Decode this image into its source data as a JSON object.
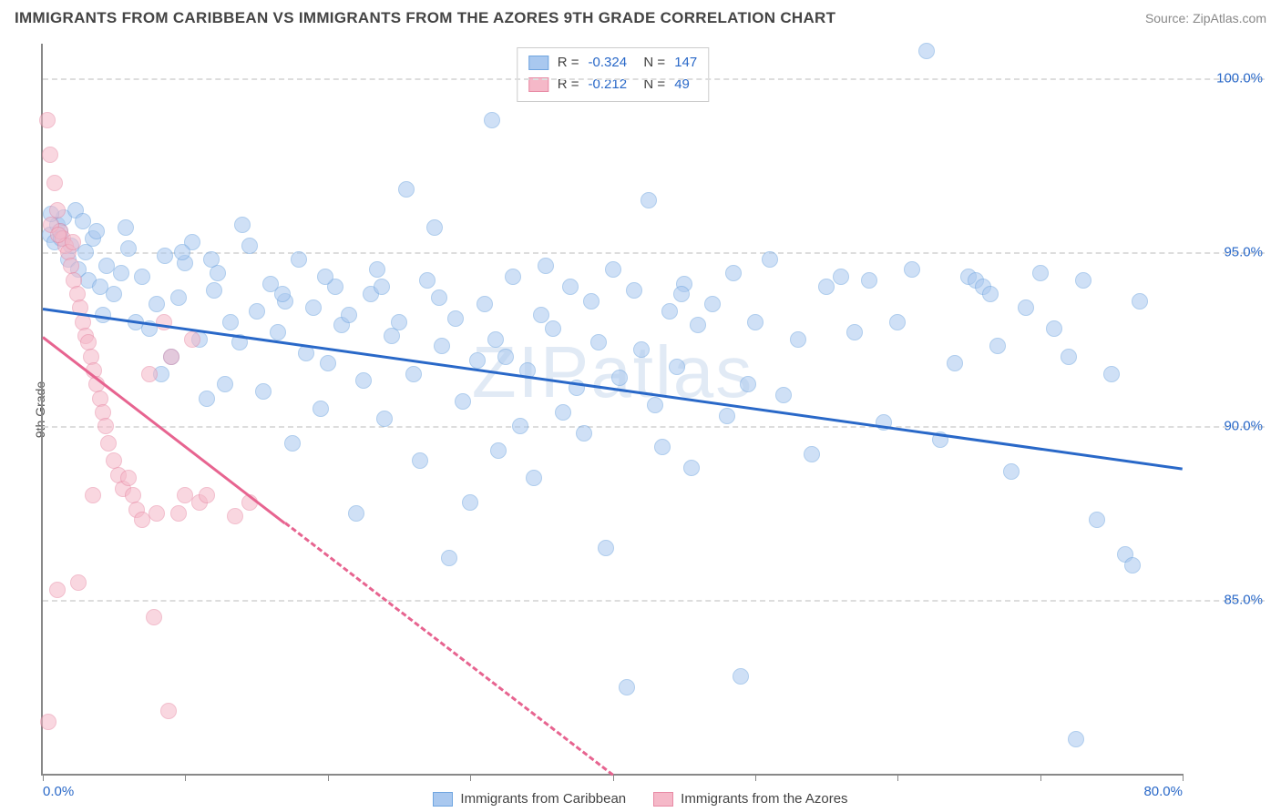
{
  "title": "IMMIGRANTS FROM CARIBBEAN VS IMMIGRANTS FROM THE AZORES 9TH GRADE CORRELATION CHART",
  "source": "Source: ZipAtlas.com",
  "watermark": "ZIPatlas",
  "ylabel": "9th Grade",
  "chart": {
    "type": "scatter",
    "background_color": "#ffffff",
    "grid_color": "#dddddd",
    "axis_color": "#888888",
    "text_color": "#555555",
    "value_color": "#2968c8",
    "xlim": [
      0,
      80
    ],
    "ylim": [
      80,
      101
    ],
    "xticks": [
      0,
      10,
      20,
      30,
      40,
      50,
      60,
      70,
      80
    ],
    "xtick_labels_shown": {
      "0": "0.0%",
      "80": "80.0%"
    },
    "yticks": [
      85,
      90,
      95,
      100
    ],
    "ytick_labels": [
      "85.0%",
      "90.0%",
      "95.0%",
      "100.0%"
    ],
    "marker_radius": 9,
    "marker_opacity": 0.55,
    "trend_line_width": 3
  },
  "series": [
    {
      "name": "Immigrants from Caribbean",
      "color_fill": "#a9c8ef",
      "color_stroke": "#6fa5e0",
      "trend_color": "#2968c8",
      "trend_dash": "solid",
      "R": "-0.324",
      "N": "147",
      "trend": {
        "x1": 0,
        "y1": 93.4,
        "x2": 80,
        "y2": 88.8
      },
      "points": [
        [
          0.5,
          95.5
        ],
        [
          0.8,
          95.3
        ],
        [
          1.0,
          95.8
        ],
        [
          1.2,
          95.6
        ],
        [
          1.5,
          96.0
        ],
        [
          1.8,
          94.8
        ],
        [
          2.0,
          95.2
        ],
        [
          2.3,
          96.2
        ],
        [
          2.5,
          94.5
        ],
        [
          3.0,
          95.0
        ],
        [
          3.2,
          94.2
        ],
        [
          3.5,
          95.4
        ],
        [
          4.0,
          94.0
        ],
        [
          4.2,
          93.2
        ],
        [
          4.5,
          94.6
        ],
        [
          5.0,
          93.8
        ],
        [
          5.5,
          94.4
        ],
        [
          6.0,
          95.1
        ],
        [
          6.5,
          93.0
        ],
        [
          7.0,
          94.3
        ],
        [
          7.5,
          92.8
        ],
        [
          8.0,
          93.5
        ],
        [
          8.3,
          91.5
        ],
        [
          8.6,
          94.9
        ],
        [
          9.0,
          92.0
        ],
        [
          9.5,
          93.7
        ],
        [
          10.0,
          94.7
        ],
        [
          10.5,
          95.3
        ],
        [
          11.0,
          92.5
        ],
        [
          11.5,
          90.8
        ],
        [
          12.0,
          93.9
        ],
        [
          12.3,
          94.4
        ],
        [
          12.8,
          91.2
        ],
        [
          13.2,
          93.0
        ],
        [
          13.8,
          92.4
        ],
        [
          14.5,
          95.2
        ],
        [
          15.0,
          93.3
        ],
        [
          15.5,
          91.0
        ],
        [
          16.0,
          94.1
        ],
        [
          16.5,
          92.7
        ],
        [
          17.0,
          93.6
        ],
        [
          17.5,
          89.5
        ],
        [
          18.0,
          94.8
        ],
        [
          18.5,
          92.1
        ],
        [
          19.0,
          93.4
        ],
        [
          19.5,
          90.5
        ],
        [
          20.0,
          91.8
        ],
        [
          20.5,
          94.0
        ],
        [
          21.0,
          92.9
        ],
        [
          21.5,
          93.2
        ],
        [
          22.0,
          87.5
        ],
        [
          22.5,
          91.3
        ],
        [
          23.0,
          93.8
        ],
        [
          23.5,
          94.5
        ],
        [
          24.0,
          90.2
        ],
        [
          24.5,
          92.6
        ],
        [
          25.0,
          93.0
        ],
        [
          25.5,
          96.8
        ],
        [
          26.0,
          91.5
        ],
        [
          26.5,
          89.0
        ],
        [
          27.0,
          94.2
        ],
        [
          27.5,
          95.7
        ],
        [
          28.0,
          92.3
        ],
        [
          28.5,
          86.2
        ],
        [
          29.0,
          93.1
        ],
        [
          29.5,
          90.7
        ],
        [
          30.0,
          87.8
        ],
        [
          30.5,
          91.9
        ],
        [
          31.0,
          93.5
        ],
        [
          31.5,
          98.8
        ],
        [
          32.0,
          89.3
        ],
        [
          32.5,
          92.0
        ],
        [
          33.0,
          94.3
        ],
        [
          33.5,
          90.0
        ],
        [
          34.0,
          91.6
        ],
        [
          34.5,
          88.5
        ],
        [
          35.0,
          93.2
        ],
        [
          35.8,
          92.8
        ],
        [
          36.5,
          90.4
        ],
        [
          37.0,
          94.0
        ],
        [
          37.5,
          91.1
        ],
        [
          38.0,
          89.8
        ],
        [
          38.5,
          93.6
        ],
        [
          39.0,
          92.4
        ],
        [
          39.5,
          86.5
        ],
        [
          40.0,
          94.5
        ],
        [
          40.5,
          91.4
        ],
        [
          41.0,
          82.5
        ],
        [
          41.5,
          93.9
        ],
        [
          42.0,
          92.2
        ],
        [
          42.5,
          96.5
        ],
        [
          43.0,
          90.6
        ],
        [
          43.5,
          89.4
        ],
        [
          44.0,
          93.3
        ],
        [
          44.5,
          91.7
        ],
        [
          45.0,
          94.1
        ],
        [
          45.5,
          88.8
        ],
        [
          46.0,
          92.9
        ],
        [
          47.0,
          93.5
        ],
        [
          48.0,
          90.3
        ],
        [
          48.5,
          94.4
        ],
        [
          49.0,
          82.8
        ],
        [
          49.5,
          91.2
        ],
        [
          50.0,
          93.0
        ],
        [
          51.0,
          94.8
        ],
        [
          52.0,
          90.9
        ],
        [
          53.0,
          92.5
        ],
        [
          54.0,
          89.2
        ],
        [
          55.0,
          94.0
        ],
        [
          56.0,
          94.3
        ],
        [
          57.0,
          92.7
        ],
        [
          58.0,
          94.2
        ],
        [
          59.0,
          90.1
        ],
        [
          60.0,
          93.0
        ],
        [
          61.0,
          94.5
        ],
        [
          62.0,
          100.8
        ],
        [
          63.0,
          89.6
        ],
        [
          64.0,
          91.8
        ],
        [
          65.0,
          94.3
        ],
        [
          65.5,
          94.2
        ],
        [
          66.0,
          94.0
        ],
        [
          66.5,
          93.8
        ],
        [
          67.0,
          92.3
        ],
        [
          68.0,
          88.7
        ],
        [
          69.0,
          93.4
        ],
        [
          70.0,
          94.4
        ],
        [
          71.0,
          92.8
        ],
        [
          72.0,
          92.0
        ],
        [
          73.0,
          94.2
        ],
        [
          74.0,
          87.3
        ],
        [
          75.0,
          91.5
        ],
        [
          76.0,
          86.3
        ],
        [
          76.5,
          86.0
        ],
        [
          77.0,
          93.6
        ],
        [
          72.5,
          81.0
        ],
        [
          14.0,
          95.8
        ],
        [
          5.8,
          95.7
        ],
        [
          2.8,
          95.9
        ],
        [
          3.8,
          95.6
        ],
        [
          1.3,
          95.4
        ],
        [
          0.6,
          96.1
        ],
        [
          9.8,
          95.0
        ],
        [
          11.8,
          94.8
        ],
        [
          16.8,
          93.8
        ],
        [
          19.8,
          94.3
        ],
        [
          23.8,
          94.0
        ],
        [
          27.8,
          93.7
        ],
        [
          31.8,
          92.5
        ],
        [
          35.3,
          94.6
        ],
        [
          44.8,
          93.8
        ]
      ]
    },
    {
      "name": "Immigrants from the Azores",
      "color_fill": "#f5b8c8",
      "color_stroke": "#e88aa5",
      "trend_color": "#e76490",
      "trend_dash": "dashed",
      "R": "-0.212",
      "N": "49",
      "trend": {
        "x1": 0,
        "y1": 92.6,
        "x2": 40,
        "y2": 80.0
      },
      "trend_solid_until_x": 17,
      "points": [
        [
          0.3,
          98.8
        ],
        [
          0.5,
          97.8
        ],
        [
          0.8,
          97.0
        ],
        [
          1.0,
          96.2
        ],
        [
          1.2,
          95.6
        ],
        [
          1.4,
          95.4
        ],
        [
          1.6,
          95.2
        ],
        [
          1.8,
          95.0
        ],
        [
          2.0,
          94.6
        ],
        [
          2.2,
          94.2
        ],
        [
          2.4,
          93.8
        ],
        [
          2.6,
          93.4
        ],
        [
          2.8,
          93.0
        ],
        [
          3.0,
          92.6
        ],
        [
          3.2,
          92.4
        ],
        [
          3.4,
          92.0
        ],
        [
          3.6,
          91.6
        ],
        [
          3.8,
          91.2
        ],
        [
          4.0,
          90.8
        ],
        [
          4.2,
          90.4
        ],
        [
          4.4,
          90.0
        ],
        [
          4.6,
          89.5
        ],
        [
          5.0,
          89.0
        ],
        [
          5.3,
          88.6
        ],
        [
          5.6,
          88.2
        ],
        [
          6.0,
          88.5
        ],
        [
          6.3,
          88.0
        ],
        [
          6.6,
          87.6
        ],
        [
          7.0,
          87.3
        ],
        [
          7.5,
          91.5
        ],
        [
          8.0,
          87.5
        ],
        [
          8.5,
          93.0
        ],
        [
          9.0,
          92.0
        ],
        [
          9.5,
          87.5
        ],
        [
          10.0,
          88.0
        ],
        [
          10.5,
          92.5
        ],
        [
          11.0,
          87.8
        ],
        [
          11.5,
          88.0
        ],
        [
          7.8,
          84.5
        ],
        [
          13.5,
          87.4
        ],
        [
          14.5,
          87.8
        ],
        [
          1.0,
          85.3
        ],
        [
          2.5,
          85.5
        ],
        [
          3.5,
          88.0
        ],
        [
          0.4,
          81.5
        ],
        [
          8.8,
          81.8
        ],
        [
          0.6,
          95.8
        ],
        [
          1.1,
          95.5
        ],
        [
          2.1,
          95.3
        ]
      ]
    }
  ],
  "legend_bottom": [
    {
      "label": "Immigrants from Caribbean",
      "fill": "#a9c8ef",
      "stroke": "#6fa5e0"
    },
    {
      "label": "Immigrants from the Azores",
      "fill": "#f5b8c8",
      "stroke": "#e88aa5"
    }
  ]
}
